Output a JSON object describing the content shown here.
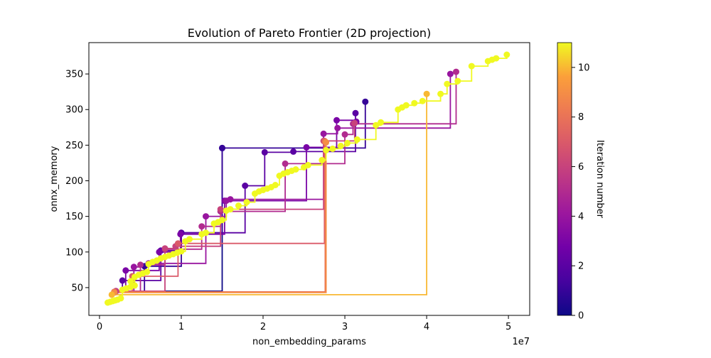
{
  "chart_data": {
    "type": "line",
    "title": "Evolution of Pareto Frontier (2D projection)",
    "xlabel": "non_embedding_params",
    "ylabel": "onnx_memory",
    "x_offset_label": "1e7",
    "x_multiplier": 10000000,
    "xlim": [
      -1300000,
      52600000
    ],
    "ylim": [
      11,
      394
    ],
    "xticks": [
      0,
      10000000,
      20000000,
      30000000,
      40000000,
      50000000
    ],
    "xtick_labels": [
      "0",
      "1",
      "2",
      "3",
      "4",
      "5"
    ],
    "yticks": [
      50,
      100,
      150,
      200,
      250,
      300,
      350
    ],
    "ytick_labels": [
      "50",
      "100",
      "150",
      "200",
      "250",
      "300",
      "350"
    ],
    "grid": false,
    "legend": "none",
    "colorbar": {
      "label": "Iteration number",
      "min": 0,
      "max": 11,
      "ticks": [
        0,
        2,
        4,
        6,
        8,
        10
      ],
      "tick_labels": [
        "0",
        "2",
        "4",
        "6",
        "8",
        "10"
      ],
      "colormap": "plasma"
    },
    "series": [
      {
        "iteration": 0,
        "points": [
          [
            2000000,
            45
          ],
          [
            15000000,
            246
          ]
        ]
      },
      {
        "iteration": 1,
        "points": [
          [
            2000000,
            45
          ],
          [
            5500000,
            80
          ],
          [
            10000000,
            127
          ],
          [
            15000000,
            246
          ],
          [
            32500000,
            311
          ]
        ]
      },
      {
        "iteration": 2,
        "points": [
          [
            2000000,
            45
          ],
          [
            2800000,
            60
          ],
          [
            7500000,
            102
          ],
          [
            10000000,
            127
          ],
          [
            17800000,
            193
          ],
          [
            20200000,
            240
          ],
          [
            23700000,
            241
          ],
          [
            31300000,
            295
          ]
        ]
      },
      {
        "iteration": 3,
        "points": [
          [
            2000000,
            45
          ],
          [
            3200000,
            74
          ],
          [
            7300000,
            100
          ],
          [
            9900000,
            125
          ],
          [
            15300000,
            172
          ],
          [
            25300000,
            247
          ],
          [
            29000000,
            285
          ],
          [
            31400000,
            283
          ]
        ]
      },
      {
        "iteration": 4,
        "points": [
          [
            2000000,
            45
          ],
          [
            4200000,
            79
          ],
          [
            6000000,
            84
          ],
          [
            13000000,
            150
          ],
          [
            15500000,
            172
          ],
          [
            16000000,
            174
          ],
          [
            27400000,
            266
          ],
          [
            29100000,
            274
          ],
          [
            42900000,
            350
          ]
        ]
      },
      {
        "iteration": 5,
        "points": [
          [
            2000000,
            45
          ],
          [
            5000000,
            82
          ],
          [
            8000000,
            104
          ],
          [
            12500000,
            136
          ],
          [
            14800000,
            157
          ],
          [
            22700000,
            224
          ],
          [
            30000000,
            265
          ],
          [
            31000000,
            280
          ],
          [
            43600000,
            353
          ]
        ]
      },
      {
        "iteration": 6,
        "points": [
          [
            2000000,
            45
          ],
          [
            8000000,
            105
          ],
          [
            9300000,
            108
          ],
          [
            14800000,
            160
          ],
          [
            27400000,
            256
          ],
          [
            31200000,
            281
          ]
        ]
      },
      {
        "iteration": 7,
        "points": [
          [
            1800000,
            44
          ],
          [
            4000000,
            66
          ],
          [
            9600000,
            112
          ],
          [
            27500000,
            256
          ]
        ]
      },
      {
        "iteration": 8,
        "points": [
          [
            1800000,
            44
          ],
          [
            27600000,
            255
          ]
        ]
      },
      {
        "iteration": 9,
        "points": [
          [
            1800000,
            43
          ],
          [
            27700000,
            254
          ]
        ]
      },
      {
        "iteration": 10,
        "points": [
          [
            1500000,
            40
          ],
          [
            40000000,
            322
          ]
        ]
      },
      {
        "iteration": 11,
        "points": [
          [
            1000000,
            29
          ],
          [
            1300000,
            30
          ],
          [
            1600000,
            31
          ],
          [
            1900000,
            32
          ],
          [
            2200000,
            33
          ],
          [
            2600000,
            35
          ],
          [
            2800000,
            47
          ],
          [
            3300000,
            49
          ],
          [
            3800000,
            51
          ],
          [
            4300000,
            53
          ],
          [
            3800000,
            59
          ],
          [
            4300000,
            65
          ],
          [
            4800000,
            68
          ],
          [
            5300000,
            70
          ],
          [
            5800000,
            72
          ],
          [
            6000000,
            83
          ],
          [
            6500000,
            86
          ],
          [
            7000000,
            88
          ],
          [
            7500000,
            91
          ],
          [
            8000000,
            93
          ],
          [
            8500000,
            95
          ],
          [
            9000000,
            97
          ],
          [
            9500000,
            99
          ],
          [
            10000000,
            101
          ],
          [
            10500000,
            115
          ],
          [
            11000000,
            118
          ],
          [
            12500000,
            125
          ],
          [
            13000000,
            127
          ],
          [
            14000000,
            140
          ],
          [
            14500000,
            142
          ],
          [
            15000000,
            145
          ],
          [
            15500000,
            158
          ],
          [
            16000000,
            160
          ],
          [
            17000000,
            165
          ],
          [
            18000000,
            170
          ],
          [
            19000000,
            182
          ],
          [
            19500000,
            185
          ],
          [
            20000000,
            187
          ],
          [
            20500000,
            189
          ],
          [
            21000000,
            191
          ],
          [
            21500000,
            194
          ],
          [
            22000000,
            207
          ],
          [
            22500000,
            210
          ],
          [
            23000000,
            212
          ],
          [
            23500000,
            214
          ],
          [
            24000000,
            216
          ],
          [
            25000000,
            219
          ],
          [
            25500000,
            222
          ],
          [
            27200000,
            229
          ],
          [
            27700000,
            243
          ],
          [
            28500000,
            245
          ],
          [
            29500000,
            249
          ],
          [
            30300000,
            253
          ],
          [
            31500000,
            258
          ],
          [
            33800000,
            278
          ],
          [
            34400000,
            282
          ],
          [
            36500000,
            300
          ],
          [
            37000000,
            303
          ],
          [
            37500000,
            306
          ],
          [
            38500000,
            309
          ],
          [
            39500000,
            312
          ],
          [
            41700000,
            322
          ],
          [
            42500000,
            336
          ],
          [
            43800000,
            340
          ],
          [
            45500000,
            361
          ],
          [
            47500000,
            368
          ],
          [
            48000000,
            370
          ],
          [
            48500000,
            372
          ],
          [
            49800000,
            377
          ]
        ]
      }
    ]
  }
}
